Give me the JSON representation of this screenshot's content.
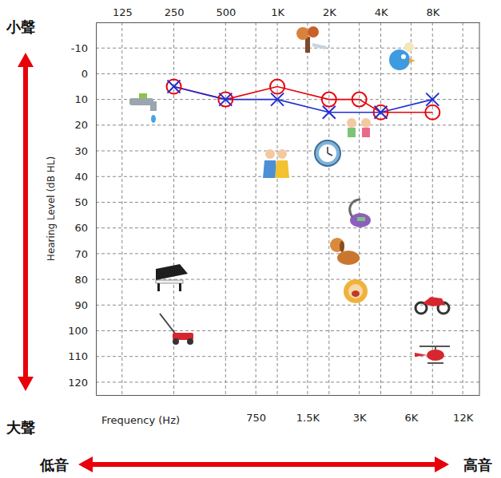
{
  "chart_data": {
    "type": "line",
    "x_label": "Frequency (Hz)",
    "y_label": "Hearing Level (dB HL)",
    "annotations": [
      "小聲",
      "大聲",
      "低音",
      "高音"
    ],
    "log": "x",
    "grid": true,
    "xlim": [
      88,
      15000
    ],
    "ylim": [
      -20,
      125
    ],
    "xticks": [
      125,
      250,
      500,
      {
        "value": 1000,
        "label": "1K"
      },
      {
        "value": 2000,
        "label": "2K"
      },
      {
        "value": 4000,
        "label": "4K"
      },
      {
        "value": 8000,
        "label": "8K"
      }
    ],
    "x2ticks": [
      750,
      {
        "value": 1500,
        "label": "1.5K"
      },
      {
        "value": 3000,
        "label": "3K"
      },
      {
        "value": 6000,
        "label": "6K"
      },
      {
        "value": 12000,
        "label": "12K"
      }
    ],
    "yticks": [
      -10,
      0,
      10,
      20,
      30,
      40,
      50,
      60,
      70,
      80,
      90,
      100,
      110,
      120
    ],
    "series": [
      {
        "color": "#e8000b",
        "marker": "circle",
        "x": [
          250,
          500,
          1000,
          2000,
          3000,
          4000,
          8000
        ],
        "values": [
          5,
          10,
          5,
          10,
          10,
          15,
          15
        ]
      },
      {
        "color": "#1f2fd0",
        "marker": "x",
        "x": [
          250,
          500,
          1000,
          2000,
          4000,
          8000
        ],
        "values": [
          5,
          10,
          10,
          15,
          15,
          10
        ]
      }
    ]
  }
}
